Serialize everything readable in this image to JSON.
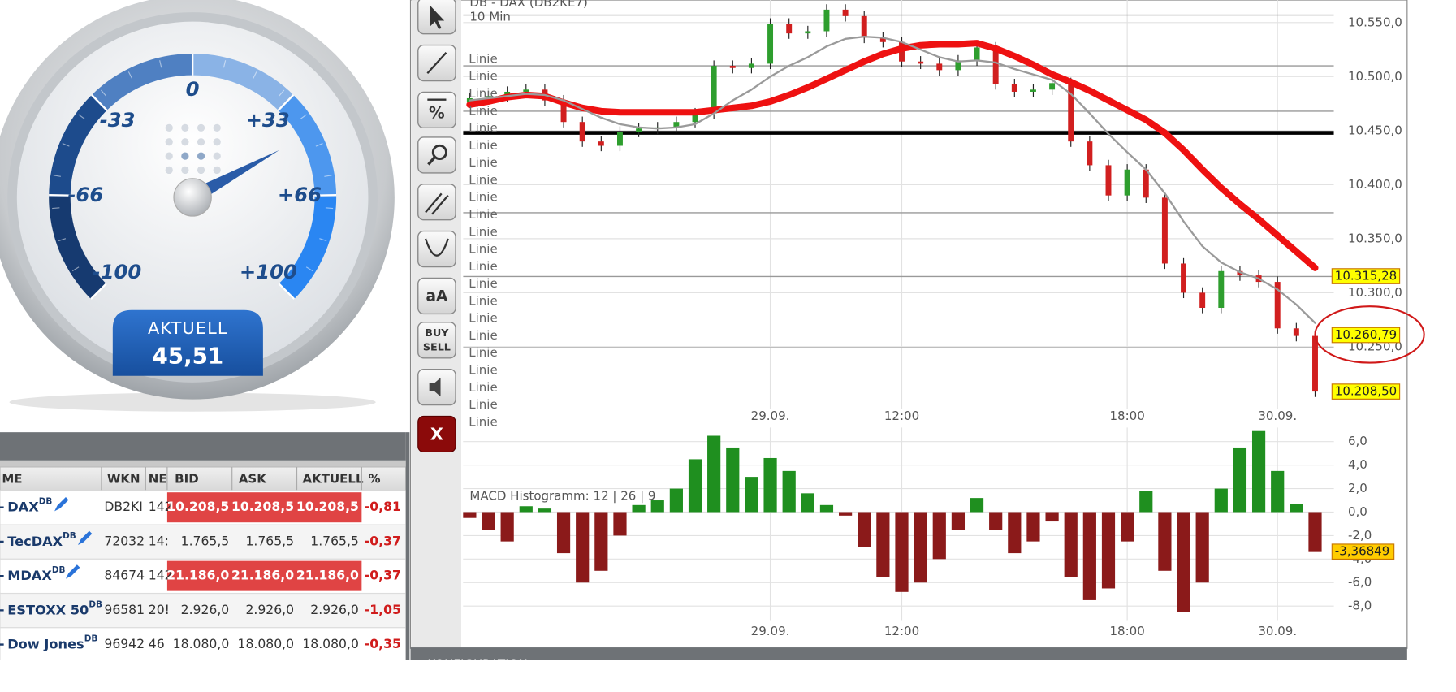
{
  "gauge": {
    "ticks": [
      -100,
      -66,
      -33,
      0,
      {
        "value": 33,
        "label": "+33"
      },
      {
        "value": 66,
        "label": "+66"
      },
      {
        "value": 100,
        "label": "+100"
      }
    ],
    "caption": "AKTUELL",
    "value": 45.51,
    "value_label": "45,51"
  },
  "table": {
    "headers": [
      "ME",
      "WKN",
      "NE",
      "BID",
      "ASK",
      "AKTUELL",
      "%"
    ],
    "rows": [
      {
        "name": "DAX",
        "sup": "DB",
        "cells": [
          "DB2KI",
          "142",
          "10.208,5",
          "10.208,5",
          "10.208,5",
          "-0,81"
        ],
        "highlight": true
      },
      {
        "name": "TecDAX",
        "sup": "DB",
        "cells": [
          "72032",
          "14:",
          "1.765,5",
          "1.765,5",
          "1.765,5",
          "-0,37"
        ],
        "highlight": false
      },
      {
        "name": "MDAX",
        "sup": "DB",
        "cells": [
          "84674",
          "142",
          "21.186,0",
          "21.186,0",
          "21.186,0",
          "-0,37"
        ],
        "highlight": true
      },
      {
        "name": "ESTOXX 50",
        "sup": "DB",
        "cells": [
          "96581",
          "20!",
          "2.926,0",
          "2.926,0",
          "2.926,0",
          "-1,05"
        ],
        "highlight": false
      },
      {
        "name": "Dow Jones",
        "sup": "DB",
        "cells": [
          "96942",
          "46",
          "18.080,0",
          "18.080,0",
          "18.080,0",
          "-0,35"
        ],
        "highlight": false
      }
    ]
  },
  "toolbar": {
    "percent": "%",
    "text": "aA",
    "buy": "BUY",
    "sell": "SELL",
    "close": "X"
  },
  "footer": "KONFIGURATION",
  "chart_data": [
    {
      "type": "candlestick",
      "title": "DB - DAX (DB2KE7)",
      "subtitle": "10 Min",
      "categories": [
        null,
        null,
        null,
        null,
        null,
        null,
        null,
        null,
        null,
        null,
        null,
        null,
        null,
        null,
        null,
        null,
        "29.09.",
        null,
        null,
        null,
        null,
        null,
        null,
        "12:00",
        null,
        null,
        null,
        null,
        null,
        null,
        null,
        null,
        null,
        null,
        null,
        "18:00",
        null,
        null,
        null,
        null,
        null,
        null,
        null,
        "30.09.",
        null,
        null
      ],
      "open": [
        10476,
        10480,
        10482,
        10486,
        10488,
        10478,
        10458,
        10440,
        10436,
        10449,
        10452,
        10453,
        10458,
        10466,
        10510,
        10508,
        10512,
        10549,
        10540,
        10542,
        10562,
        10556,
        10536,
        10532,
        10514,
        10512,
        10506,
        10515,
        10527,
        10493,
        10486,
        10488,
        10494,
        10440,
        10418,
        10390,
        10414,
        10388,
        10327,
        10300,
        10286,
        10320,
        10316,
        10310,
        10267,
        10260
      ],
      "high": [
        10485,
        10487,
        10491,
        10493,
        10493,
        10483,
        10463,
        10445,
        10454,
        10457,
        10458,
        10463,
        10471,
        10515,
        10515,
        10517,
        10554,
        10554,
        10547,
        10567,
        10567,
        10561,
        10541,
        10537,
        10519,
        10517,
        10520,
        10532,
        10532,
        10498,
        10493,
        10499,
        10499,
        10445,
        10423,
        10419,
        10419,
        10393,
        10332,
        10305,
        10325,
        10325,
        10321,
        10315,
        10272,
        10265
      ],
      "low": [
        10471,
        10475,
        10477,
        10481,
        10473,
        10453,
        10435,
        10431,
        10431,
        10444,
        10447,
        10448,
        10453,
        10461,
        10503,
        10503,
        10507,
        10535,
        10535,
        10537,
        10551,
        10531,
        10527,
        10509,
        10507,
        10501,
        10501,
        10510,
        10488,
        10481,
        10481,
        10483,
        10435,
        10413,
        10385,
        10385,
        10383,
        10322,
        10295,
        10281,
        10281,
        10311,
        10305,
        10262,
        10255,
        10203.5
      ],
      "close": [
        10480,
        10482,
        10486,
        10488,
        10478,
        10458,
        10440,
        10436,
        10449,
        10452,
        10453,
        10458,
        10466,
        10510,
        10508,
        10512,
        10549,
        10540,
        10542,
        10562,
        10556,
        10536,
        10532,
        10514,
        10512,
        10506,
        10515,
        10527,
        10493,
        10486,
        10488,
        10494,
        10440,
        10418,
        10390,
        10414,
        10388,
        10327,
        10300,
        10286,
        10320,
        10316,
        10310,
        10267,
        10260,
        10208.5
      ],
      "up_color": "#2e9e2e",
      "down_color": "#d11f1f",
      "overlays": [
        {
          "color": "#ee1111",
          "values": [
            10474,
            10477,
            10481,
            10483,
            10482,
            10476,
            10471,
            10468,
            10467,
            10467,
            10467,
            10467,
            10467,
            10469,
            10471,
            10473,
            10477,
            10483,
            10490,
            10498,
            10506,
            10514,
            10521,
            10526,
            10529,
            10530,
            10530,
            10531,
            10526,
            10519,
            10511,
            10502,
            10495,
            10487,
            10478,
            10469,
            10460,
            10448,
            10432,
            10414,
            10397,
            10382,
            10368,
            10353,
            10338,
            10323
          ]
        },
        {
          "color": "#9a9a9a",
          "values": [
            10478,
            10480,
            10482,
            10484,
            10483,
            10478,
            10470,
            10462,
            10456,
            10453,
            10452,
            10453,
            10456,
            10466,
            10478,
            10488,
            10500,
            10510,
            10518,
            10528,
            10535,
            10537,
            10536,
            10532,
            10525,
            10518,
            10514,
            10515,
            10513,
            10507,
            10502,
            10497,
            10484,
            10466,
            10447,
            10430,
            10414,
            10392,
            10366,
            10343,
            10328,
            10319,
            10313,
            10303,
            10289,
            10272
          ]
        }
      ],
      "hlines": [
        {
          "value": 10557,
          "color": "#999999"
        },
        {
          "value": 10510,
          "color": "#999999"
        },
        {
          "value": 10468,
          "color": "#999999"
        },
        {
          "value": 10448,
          "color": "#000000"
        },
        {
          "value": 10374,
          "color": "#999999"
        },
        {
          "value": 10315,
          "color": "#999999"
        },
        {
          "value": 10249,
          "color": "#999999"
        }
      ],
      "line_labels": [
        "Linie",
        "Linie",
        "Linie",
        "Linie",
        "Linie",
        "Linie",
        "Linie",
        "Linie",
        "Linie",
        "Linie",
        "Linie",
        "Linie",
        "Linie",
        "Linie",
        "Linie",
        "Linie",
        "Linie",
        "Linie",
        "Linie",
        "Linie",
        "Linie",
        "Linie"
      ],
      "ylim": [
        10192.6,
        10570.9
      ],
      "yticks": [
        {
          "value": 10550,
          "label": "10.550,0"
        },
        {
          "value": 10500,
          "label": "10.500,0"
        },
        {
          "value": 10450,
          "label": "10.450,0"
        },
        {
          "value": 10400,
          "label": "10.400,0"
        },
        {
          "value": 10350,
          "label": "10.350,0"
        },
        {
          "value": 10300,
          "label": "10.300,0"
        },
        {
          "value": 10250,
          "label": "10.250,0"
        }
      ],
      "price_tags": [
        {
          "value": 10315.28,
          "label": "10.315,28"
        },
        {
          "value": 10260.79,
          "label": "10.260,79"
        },
        {
          "value": 10208.5,
          "label": "10.208,50"
        }
      ],
      "grid": true
    },
    {
      "type": "bar",
      "title": "MACD Histogramm: 12 | 26 | 9",
      "categories": [
        null,
        null,
        null,
        null,
        null,
        null,
        null,
        null,
        null,
        null,
        null,
        null,
        null,
        null,
        null,
        null,
        "29.09.",
        null,
        null,
        null,
        null,
        null,
        null,
        "12:00",
        null,
        null,
        null,
        null,
        null,
        null,
        null,
        null,
        null,
        null,
        null,
        "18:00",
        null,
        null,
        null,
        null,
        null,
        null,
        null,
        "30.09.",
        null,
        null
      ],
      "values": [
        -0.5,
        -1.5,
        -2.5,
        0.5,
        0.3,
        -3.5,
        -6.0,
        -5.0,
        -2.0,
        0.6,
        1.0,
        2.0,
        4.5,
        6.5,
        5.5,
        3.0,
        4.6,
        3.5,
        1.6,
        0.6,
        -0.3,
        -3.0,
        -5.5,
        -6.8,
        -6.0,
        -4.0,
        -1.5,
        1.2,
        -1.5,
        -3.5,
        -2.5,
        -0.8,
        -5.5,
        -7.5,
        -6.5,
        -2.5,
        1.8,
        -5.0,
        -8.5,
        -6.0,
        2.0,
        5.5,
        6.9,
        3.5,
        0.7,
        -3.4
      ],
      "pos_color": "#1f8f1f",
      "neg_color": "#8b1a1a",
      "ylim": [
        -9.2,
        7.2
      ],
      "yticks": [
        {
          "value": 6,
          "label": "6,0"
        },
        {
          "value": 4,
          "label": "4,0"
        },
        {
          "value": 2,
          "label": "2,0"
        },
        {
          "value": 0,
          "label": "0,0"
        },
        {
          "value": -2,
          "label": "-2,0"
        },
        {
          "value": -4,
          "label": "-4,0"
        },
        {
          "value": -6,
          "label": "-6,0"
        },
        {
          "value": -8,
          "label": "-8,0"
        }
      ],
      "value_tag": {
        "value": -3.36849,
        "label": "-3,36849"
      },
      "grid": true
    }
  ]
}
